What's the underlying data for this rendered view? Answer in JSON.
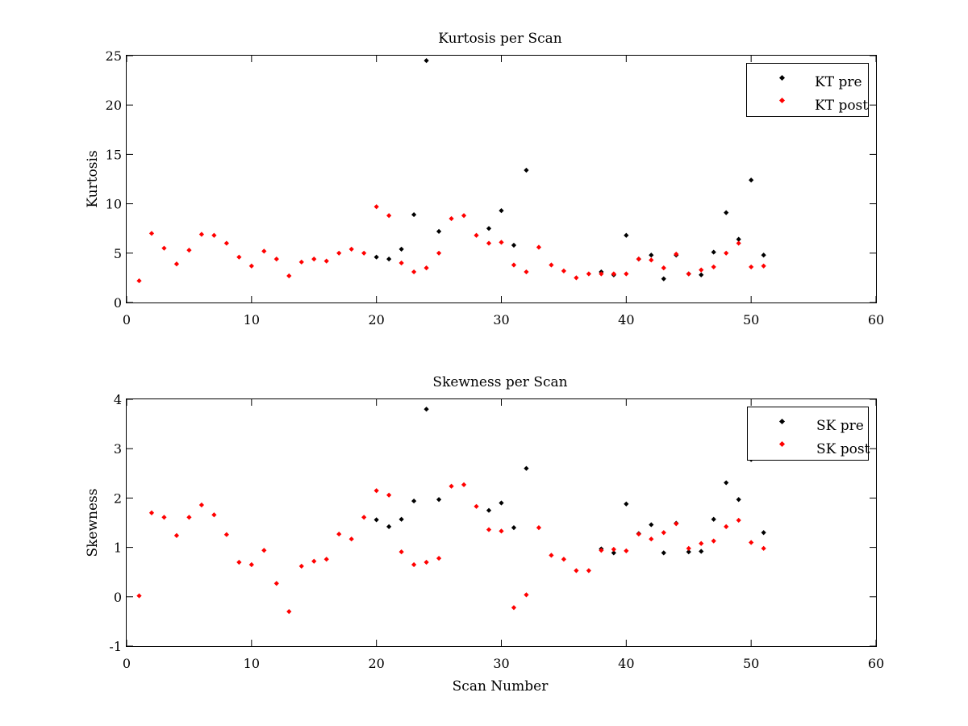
{
  "chart_data": [
    {
      "type": "scatter",
      "title": "Kurtosis per Scan",
      "xlabel": "",
      "ylabel": "Kurtosis",
      "xlim": [
        0,
        60
      ],
      "ylim": [
        0,
        25
      ],
      "xticks": [
        "0",
        "10",
        "20",
        "30",
        "40",
        "50",
        "60"
      ],
      "yticks": [
        "0",
        "5",
        "10",
        "15",
        "20",
        "25"
      ],
      "grid": false,
      "legend_position": "top-right",
      "series": [
        {
          "name": "KT pre",
          "color": "#000000",
          "x": [
            20,
            21,
            22,
            23,
            24,
            25,
            29,
            30,
            31,
            32,
            38,
            39,
            40,
            41,
            42,
            43,
            44,
            45,
            46,
            47,
            48,
            49,
            50,
            51
          ],
          "y": [
            4.6,
            4.4,
            5.4,
            8.9,
            24.5,
            7.2,
            7.5,
            9.3,
            5.8,
            13.4,
            3.1,
            2.8,
            6.8,
            4.4,
            4.8,
            2.4,
            4.8,
            2.9,
            2.8,
            5.1,
            9.1,
            6.4,
            12.4,
            4.8
          ]
        },
        {
          "name": "KT post",
          "color": "#ff0000",
          "x": [
            1,
            2,
            3,
            4,
            5,
            6,
            7,
            8,
            9,
            10,
            11,
            12,
            13,
            14,
            15,
            16,
            17,
            18,
            19,
            20,
            21,
            22,
            23,
            24,
            25,
            26,
            27,
            28,
            29,
            30,
            31,
            32,
            33,
            34,
            35,
            36,
            37,
            38,
            39,
            40,
            41,
            42,
            43,
            44,
            45,
            46,
            47,
            48,
            49,
            50,
            51
          ],
          "y": [
            2.2,
            7.0,
            5.5,
            3.9,
            5.3,
            6.9,
            6.8,
            6.0,
            4.6,
            3.7,
            5.2,
            4.4,
            2.7,
            4.1,
            4.4,
            4.2,
            5.0,
            5.4,
            5.0,
            9.7,
            8.8,
            4.0,
            3.1,
            3.5,
            5.0,
            8.5,
            8.8,
            6.8,
            6.0,
            6.1,
            3.8,
            3.1,
            5.6,
            3.8,
            3.2,
            2.5,
            2.9,
            2.9,
            2.9,
            2.9,
            4.4,
            4.3,
            3.5,
            4.9,
            2.9,
            3.3,
            3.6,
            5.0,
            6.0,
            3.6,
            3.7
          ]
        }
      ]
    },
    {
      "type": "scatter",
      "title": "Skewness per Scan",
      "xlabel": "Scan Number",
      "ylabel": "Skewness",
      "xlim": [
        0,
        60
      ],
      "ylim": [
        -1,
        4
      ],
      "xticks": [
        "0",
        "10",
        "20",
        "30",
        "40",
        "50",
        "60"
      ],
      "yticks": [
        "-1",
        "0",
        "1",
        "2",
        "3",
        "4"
      ],
      "grid": false,
      "legend_position": "top-right",
      "series": [
        {
          "name": "SK pre",
          "color": "#000000",
          "x": [
            20,
            21,
            22,
            23,
            24,
            25,
            29,
            30,
            31,
            32,
            38,
            39,
            40,
            41,
            42,
            43,
            44,
            45,
            46,
            47,
            48,
            49,
            50,
            51
          ],
          "y": [
            1.56,
            1.42,
            1.57,
            1.94,
            3.8,
            1.97,
            1.75,
            1.9,
            1.4,
            2.6,
            0.97,
            0.89,
            1.88,
            1.28,
            1.46,
            0.89,
            1.49,
            0.91,
            0.92,
            1.57,
            2.31,
            1.97,
            2.78,
            1.3
          ]
        },
        {
          "name": "SK post",
          "color": "#ff0000",
          "x": [
            1,
            2,
            3,
            4,
            5,
            6,
            7,
            8,
            9,
            10,
            11,
            12,
            13,
            14,
            15,
            16,
            17,
            18,
            19,
            20,
            21,
            22,
            23,
            24,
            25,
            26,
            27,
            28,
            29,
            30,
            31,
            32,
            33,
            34,
            35,
            36,
            37,
            38,
            39,
            40,
            41,
            42,
            43,
            44,
            45,
            46,
            47,
            48,
            49,
            50,
            51
          ],
          "y": [
            0.02,
            1.7,
            1.61,
            1.24,
            1.61,
            1.86,
            1.66,
            1.26,
            0.7,
            0.65,
            0.94,
            0.27,
            -0.3,
            0.62,
            0.72,
            0.76,
            1.27,
            1.17,
            1.61,
            2.15,
            2.06,
            0.91,
            0.65,
            0.7,
            0.78,
            2.24,
            2.27,
            1.83,
            1.36,
            1.33,
            -0.22,
            0.04,
            1.4,
            0.84,
            0.76,
            0.53,
            0.53,
            0.94,
            0.96,
            0.93,
            1.27,
            1.17,
            1.3,
            1.48,
            0.98,
            1.08,
            1.13,
            1.42,
            1.55,
            1.1,
            0.98
          ]
        }
      ]
    }
  ]
}
